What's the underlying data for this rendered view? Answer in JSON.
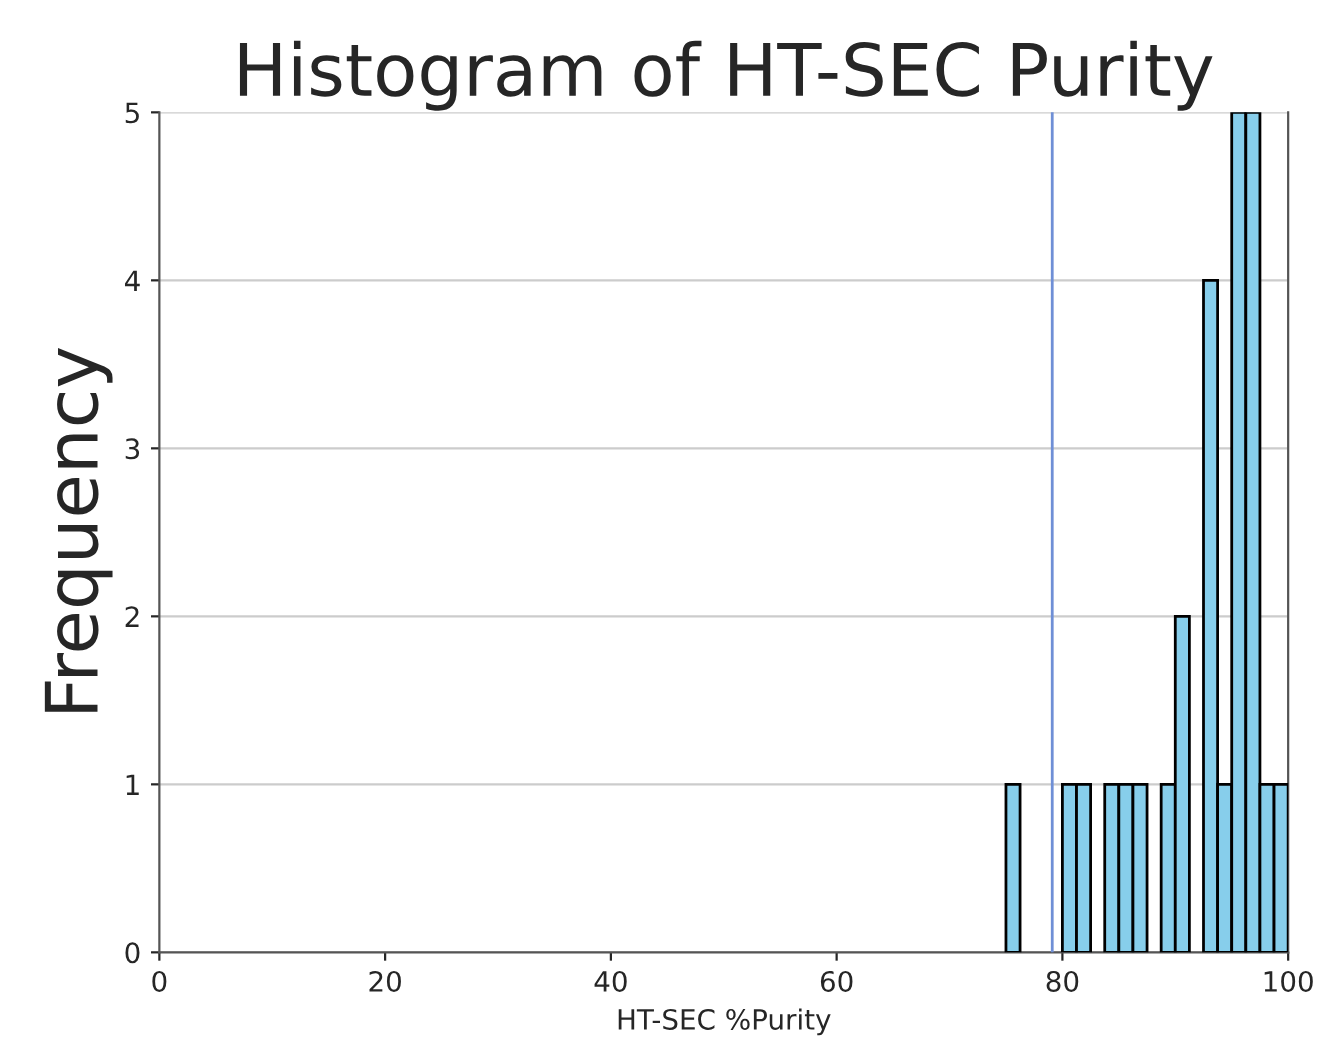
{
  "chart_data": {
    "type": "histogram",
    "title": "Histogram of HT-SEC Purity",
    "xlabel": "HT-SEC %Purity",
    "ylabel": "Frequency",
    "bins": [
      75,
      76.25,
      77.5,
      78.75,
      80,
      81.25,
      82.5,
      83.75,
      85,
      86.25,
      87.5,
      88.75,
      90,
      91.25,
      92.5,
      93.75,
      95,
      96.25,
      97.5,
      98.75,
      100
    ],
    "values": [
      1,
      0,
      0,
      0,
      1,
      1,
      0,
      1,
      1,
      1,
      0,
      1,
      2,
      0,
      4,
      1,
      5,
      5,
      1,
      1
    ],
    "color": "#87ceeb",
    "xlim": [
      0,
      100
    ],
    "xticks": [
      0,
      20,
      40,
      60,
      80,
      100
    ],
    "ylim": [
      0,
      5
    ],
    "yticks": [
      0,
      1,
      2,
      3,
      4,
      5
    ],
    "ref_lines": [
      {
        "axis": "x",
        "value": 79.1,
        "color": "#6f8fd6"
      }
    ],
    "grid": "y",
    "legend": false
  }
}
